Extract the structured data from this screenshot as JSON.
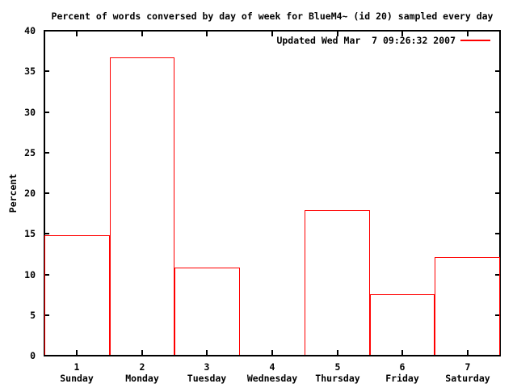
{
  "title": "Percent of words conversed by day of week for BlueM4~ (id 20) sampled every day",
  "legend": {
    "position": "top-right-inside"
  },
  "colors": {
    "series": "#ff0000",
    "axis": "#000000",
    "background": "#ffffff"
  },
  "chart_data": {
    "type": "bar",
    "title": "Percent of words conversed by day of week for BlueM4~ (id 20) sampled every day",
    "xlabel": "",
    "ylabel": "Percent",
    "xlim": [
      0.5,
      7.5
    ],
    "ylim": [
      0,
      40
    ],
    "yticks": [
      0,
      5,
      10,
      15,
      20,
      25,
      30,
      35,
      40
    ],
    "xticks": [
      1,
      2,
      3,
      4,
      5,
      6,
      7
    ],
    "categories": [
      "Sunday",
      "Monday",
      "Tuesday",
      "Wednesday",
      "Thursday",
      "Friday",
      "Saturday"
    ],
    "x": [
      1,
      2,
      3,
      4,
      5,
      6,
      7
    ],
    "series": [
      {
        "name": "Updated Wed Mar  7 09:26:32 2007",
        "values": [
          14.8,
          36.7,
          10.8,
          0,
          17.9,
          7.6,
          12.1
        ]
      }
    ],
    "bar_width": 1.0,
    "bar_style": "outline",
    "grid": false,
    "legend_position": "top-right-inside",
    "ticks_mirrored": true
  }
}
